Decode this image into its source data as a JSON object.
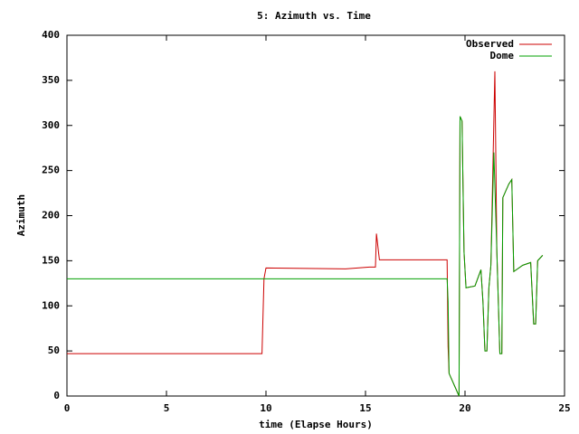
{
  "chart_data": {
    "type": "line",
    "title": "5: Azimuth vs. Time",
    "x_label": "time (Elapse Hours)",
    "y_label": "Azimuth",
    "xlim": [
      0,
      25
    ],
    "xticks": [
      0,
      5,
      10,
      15,
      20,
      25
    ],
    "ylim": [
      0,
      400
    ],
    "yticks": [
      0,
      50,
      100,
      150,
      200,
      250,
      300,
      350,
      400
    ],
    "legend": "top-right",
    "series": [
      {
        "name": "Observed",
        "color": "#cc0000",
        "x": [
          0,
          9.8,
          9.9,
          10,
          14,
          15.2,
          15.5,
          15.55,
          15.7,
          19.1,
          19.15,
          19.2,
          19.7,
          19.75,
          19.85,
          19.95,
          20.05,
          20.5,
          20.8,
          20.9,
          21.0,
          21.1,
          21.2,
          21.3,
          21.5,
          21.6,
          21.75,
          21.85,
          21.9,
          22.2,
          22.35,
          22.45,
          22.9,
          23.3,
          23.45,
          23.55,
          23.65,
          23.9
        ],
        "values": [
          47,
          47,
          130,
          142,
          141,
          143,
          143,
          180,
          151,
          151,
          55,
          25,
          0,
          310,
          305,
          160,
          120,
          122,
          140,
          105,
          50,
          50,
          120,
          145,
          360,
          160,
          47,
          47,
          220,
          235,
          240,
          138,
          145,
          148,
          80,
          80,
          150,
          156
        ]
      },
      {
        "name": "Dome",
        "color": "#00a000",
        "x": [
          0,
          19.1,
          19.15,
          19.2,
          19.7,
          19.75,
          19.85,
          19.95,
          20.05,
          20.5,
          20.8,
          20.9,
          21.0,
          21.1,
          21.2,
          21.3,
          21.45,
          21.6,
          21.75,
          21.85,
          21.9,
          22.2,
          22.35,
          22.45,
          22.9,
          23.3,
          23.45,
          23.55,
          23.65,
          23.9
        ],
        "values": [
          130,
          130,
          105,
          25,
          0,
          310,
          305,
          160,
          120,
          122,
          140,
          105,
          50,
          50,
          120,
          145,
          270,
          160,
          47,
          47,
          220,
          235,
          240,
          138,
          145,
          148,
          80,
          80,
          150,
          156
        ]
      }
    ]
  }
}
